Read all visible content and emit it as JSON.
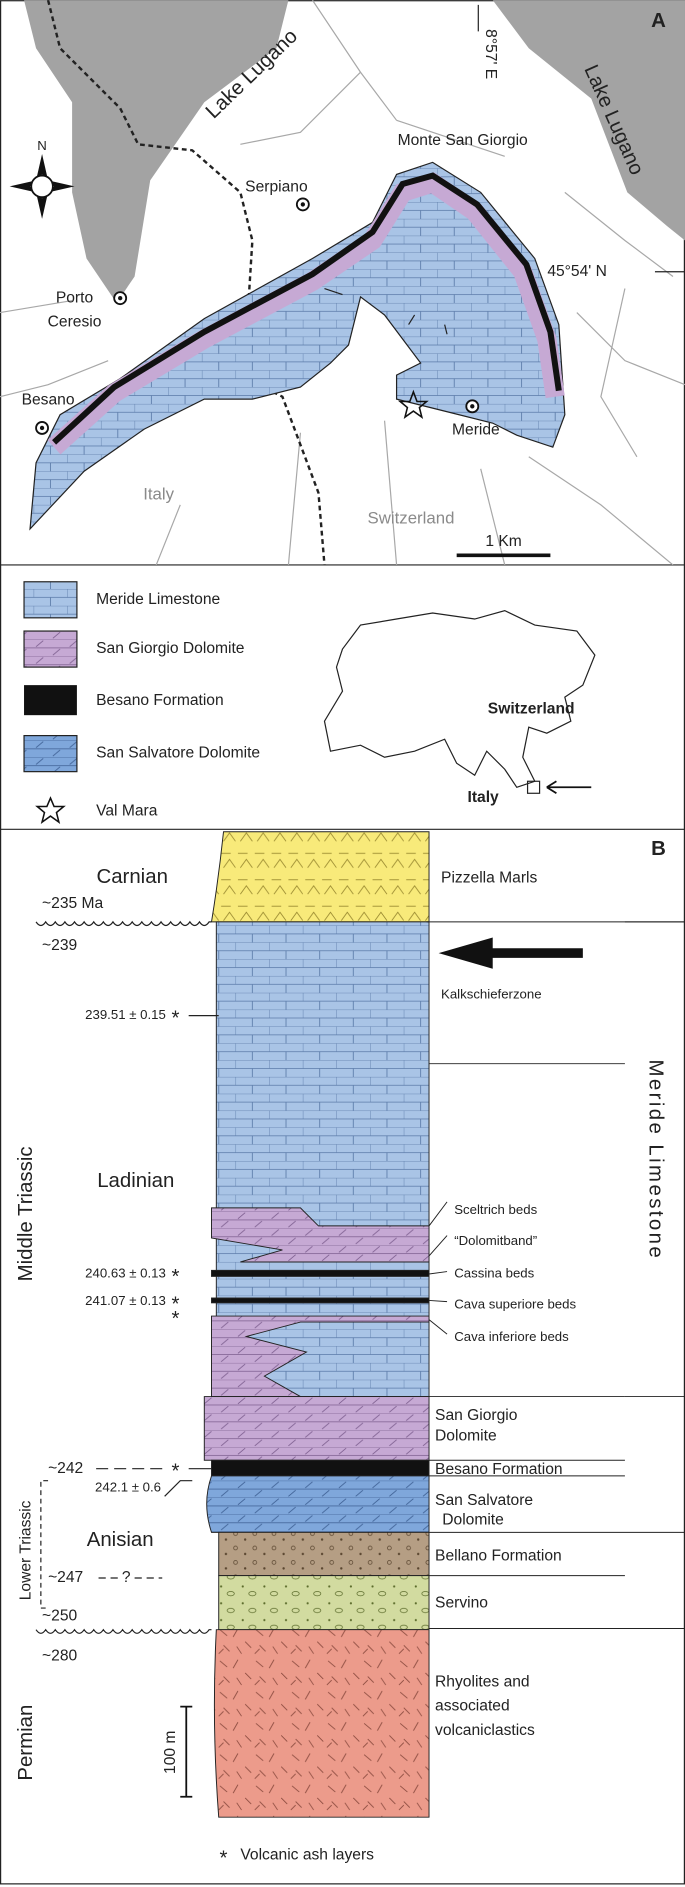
{
  "panel_a": {
    "label": "A",
    "lake_west": "Lake Lugano",
    "lake_east": "Lake Lugano",
    "longitude": "8°57' E",
    "latitude": "45°54' N",
    "compass": "N",
    "places": {
      "monte_san_giorgio": "Monte San Giorgio",
      "serpiano": "Serpiano",
      "porto_ceresio": [
        "Porto",
        "Ceresio"
      ],
      "besano": "Besano",
      "meride": "Meride"
    },
    "countries": {
      "italy": "Italy",
      "switzerland": "Switzerland"
    },
    "scale_bar": "1 Km",
    "legend": [
      "Meride Limestone",
      "San Giorgio Dolomite",
      "Besano Formation",
      "San Salvatore Dolomite",
      "Val Mara"
    ],
    "inset": {
      "switzerland": "Switzerland",
      "italy": "Italy"
    }
  },
  "panel_b": {
    "label": "B",
    "stages": [
      "Carnian",
      "Ladinian",
      "Anisian"
    ],
    "periods": [
      "Middle Triassic",
      "Lower Triassic",
      "Permian"
    ],
    "ages": [
      "~235 Ma",
      "~239",
      "~242",
      "~247",
      "?",
      "~250",
      "~280"
    ],
    "dates": [
      "239.51 ± 0.15",
      "240.63 ± 0.13",
      "241.07 ± 0.13",
      "242.1 ± 0.6"
    ],
    "ash_marker": "*",
    "units": [
      "Pizzella Marls",
      "Kalkschieferzone",
      "Sceltrich beds",
      "“Dolomitband”",
      "Cassina beds",
      "Cava superiore beds",
      "Cava inferiore beds",
      [
        "San Giorgio",
        "Dolomite"
      ],
      "Besano Formation",
      [
        "San Salvatore",
        "Dolomite"
      ],
      "Bellano Formation",
      "Servino",
      [
        "Rhyolites and",
        "associated",
        "volcaniclastics"
      ]
    ],
    "formation": "Meride Limestone",
    "scale": "100 m",
    "footnote": "Volcanic ash layers"
  }
}
